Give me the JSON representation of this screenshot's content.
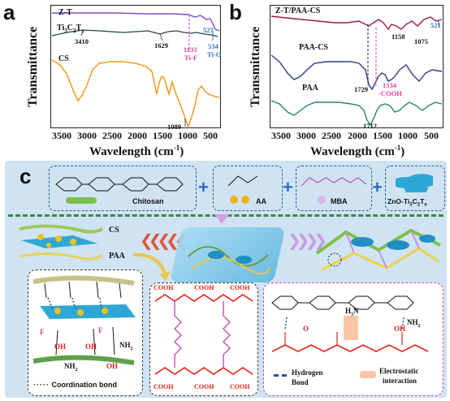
{
  "panel_a": {
    "label": "a",
    "ylabel": "Transmittance",
    "xlabel": "Wavelength (cm",
    "xlabel_sup": "-1",
    "xlabel_end": ")",
    "ticks": [
      "3500",
      "3000",
      "2500",
      "2000",
      "1500",
      "1000",
      "500"
    ],
    "curves": {
      "zt": "Z-T",
      "ti3c2": "Ti",
      "ti3c2_sub1": "3",
      "ti3c2_mid": "C",
      "ti3c2_sub2": "2",
      "ti3c2_end": "T",
      "ti3c2_sub3": "x",
      "cs": "CS"
    },
    "peaks": {
      "p3410": "3410",
      "p1629": "1629",
      "p527": "527",
      "p1133": "1133",
      "tif": "Ti-F",
      "p534": "534",
      "tio": "Ti-O",
      "p1089": "1089"
    }
  },
  "panel_b": {
    "label": "b",
    "ylabel": "Transmittance",
    "xlabel": "Wavelength (cm",
    "xlabel_sup": "-1",
    "xlabel_end": ")",
    "ticks": [
      "3500",
      "3000",
      "2500",
      "2000",
      "1500",
      "1000",
      "500"
    ],
    "curves": {
      "ztpaacs": "Z-T/PAA-CS",
      "paacs": "PAA-CS",
      "paa": "PAA"
    },
    "peaks": {
      "p521": "521",
      "p1158": "1158",
      "p1075": "1075",
      "p1729": "1729",
      "p1534": "1534",
      "cooh": "-COOH",
      "p1712": "1712"
    }
  },
  "panel_c": {
    "label": "c",
    "reagents": {
      "chitosan": "Chitosan",
      "aa": "AA",
      "mba": "MBA",
      "znoti": "ZnO-Ti",
      "znoti_sub1": "3",
      "znoti_mid": "C",
      "znoti_sub2": "2",
      "znoti_end": "T",
      "znoti_sub3": "x"
    },
    "plus": "+",
    "cs_label": "CS",
    "paa_label": "PAA",
    "legend": {
      "coord": "Coordination bond",
      "hbond_1": "Hydrogen",
      "hbond_2": "Bond",
      "electro_1": "Electrostatic",
      "electro_2": "interaction"
    },
    "cooh": "COOH",
    "chem": {
      "oh": "OH",
      "nh2": "NH",
      "nh2_sub": "2",
      "f": "F",
      "o": "O",
      "h3n": "H",
      "h3n_sub": "3",
      "h3n_end": "N"
    },
    "colors": {
      "bg": "#cfe3f3",
      "accent": "#2b6fc2",
      "pink": "#e23c9c",
      "red": "#e0221b"
    }
  }
}
